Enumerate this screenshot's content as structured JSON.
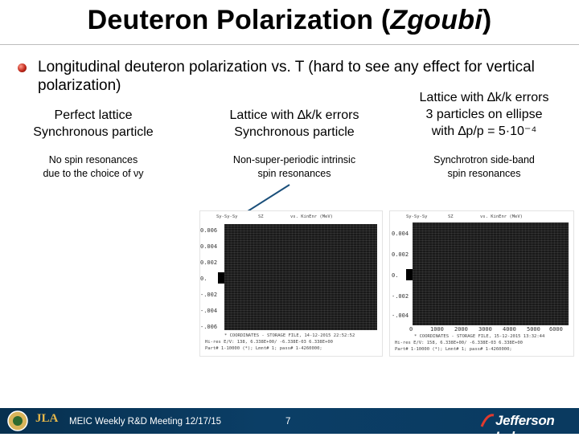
{
  "slide": {
    "title_main": "Deuteron Polarization (",
    "title_italic": "Zgoubi",
    "title_end": ")",
    "bullet_text": "Longitudinal deuteron polarization vs. T (hard to see any effect for vertical polarization)",
    "columns": [
      {
        "head_line1": "Perfect lattice",
        "head_line2": "Synchronous particle",
        "note_line1": "No spin resonances",
        "note_line2": "due to the choice of νy"
      },
      {
        "head_line1": "Lattice with ∆k/k errors",
        "head_line2": "Synchronous particle",
        "note_line1": "Non-super-periodic intrinsic",
        "note_line2": "spin resonances"
      },
      {
        "head_line1": "Lattice with ∆k/k errors",
        "head_line2": "3 particles on ellipse",
        "head_line3": "with ∆p/p = 5·10⁻⁴",
        "note_line1": "Synchrotron side-band",
        "note_line2": "spin resonances"
      }
    ]
  },
  "plots": {
    "left": {
      "y_ticks": [
        "0.006",
        "0.004",
        "0.002",
        "0.",
        "-.002",
        "-.004",
        "-.006"
      ],
      "header_left": "Sy-Sy-Sy",
      "header_mid": "SZ",
      "header_right": "vs. KinEnr (MeV)",
      "footer_line1": "* COORDINATES  -  STORAGE FILE, 14-12-2015 22:52:52",
      "footer_line2": "Hi-res E/V: 138,   6.338E+00/ -6.338E-03 6.338E+00",
      "footer_line3": "Part# 1-10000 (*); Lmnt# 1; pass# 1-4260000;"
    },
    "right": {
      "y_ticks": [
        "0.004",
        "0.002",
        "0.",
        "-.002",
        "-.004"
      ],
      "x_ticks": [
        "0",
        "1000",
        "2000",
        "3000",
        "4000",
        "5000",
        "6000"
      ],
      "header_left": "Sy-Sy-Sy",
      "header_mid": "SZ",
      "header_right": "vs. KinEnr (MeV)",
      "footer_line1": "* COORDINATES  -  STORAGE FILE, 15-12-2015 13:32:44",
      "footer_line2": "Hi-res E/V: 158,   6.338E+00/ -6.338E-03 6.338E+00",
      "footer_line3": "Part# 1-10000 (*); Lmnt# 1; pass# 1-4260000;"
    }
  },
  "footer": {
    "meeting": "MEIC Weekly R&D Meeting 12/17/15",
    "page_number": "7",
    "brand": "Jefferson Lab",
    "logo_left": "JLA"
  },
  "colors": {
    "footer_bg": "#0a3a60",
    "bullet": "#c0281a",
    "plot_bg": "#1a1a1a"
  }
}
